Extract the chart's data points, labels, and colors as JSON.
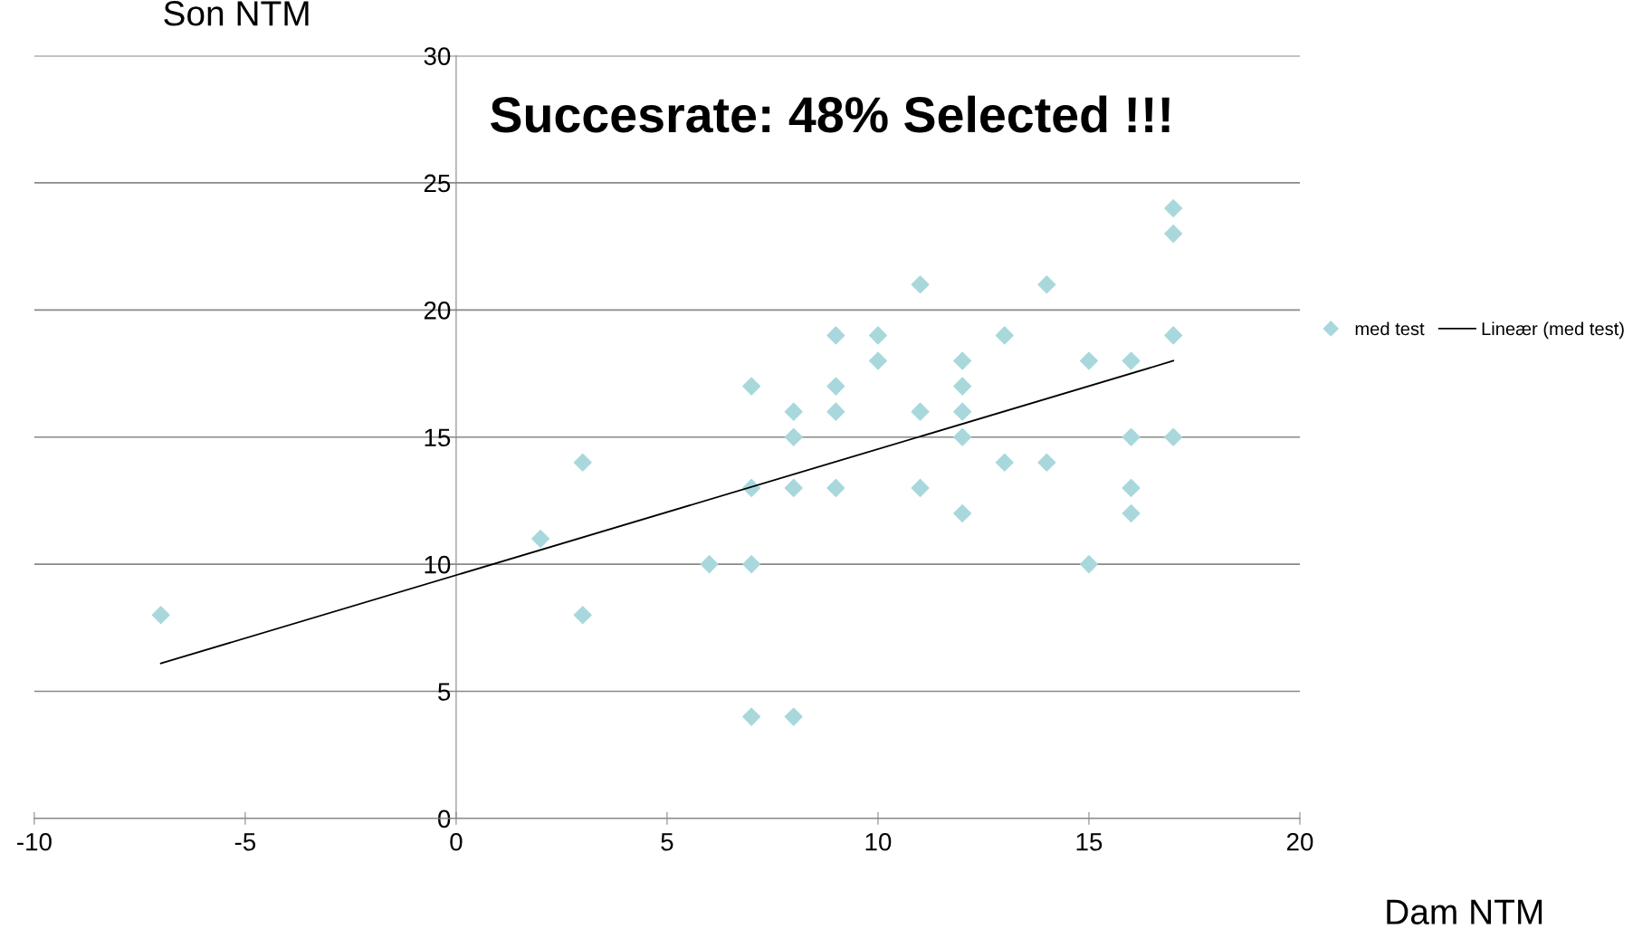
{
  "chart_data": {
    "type": "scatter",
    "title": "Succesrate: 48% Selected !!!",
    "xlabel": "Dam NTM",
    "ylabel": "Son NTM",
    "xlim": [
      -10,
      20
    ],
    "xticks": [
      -10,
      -5,
      0,
      5,
      10,
      15,
      20
    ],
    "ylim": [
      0,
      30
    ],
    "yticks": [
      0,
      5,
      10,
      15,
      20,
      25,
      30
    ],
    "grid": "y",
    "legend": "right",
    "series": [
      {
        "name": "med test",
        "marker": "diamond",
        "color": "#a8d8dc",
        "x": [
          -7,
          2,
          3,
          3,
          6,
          7,
          7,
          7,
          7,
          8,
          8,
          8,
          8,
          9,
          9,
          9,
          9,
          10,
          10,
          11,
          11,
          11,
          12,
          12,
          12,
          12,
          12,
          13,
          13,
          14,
          14,
          15,
          15,
          16,
          16,
          16,
          16,
          17,
          17,
          17,
          17
        ],
        "values": [
          8,
          11,
          14,
          8,
          10,
          17,
          13,
          10,
          4,
          16,
          15,
          13,
          4,
          19,
          17,
          16,
          13,
          19,
          18,
          21,
          16,
          13,
          18,
          17,
          16,
          15,
          12,
          19,
          14,
          21,
          14,
          18,
          10,
          18,
          15,
          13,
          12,
          24,
          23,
          19,
          15
        ]
      },
      {
        "name": "Lineær (med test)",
        "type": "line",
        "color": "#000000",
        "x": [
          -7,
          17
        ],
        "values": [
          6.1,
          18
        ]
      }
    ]
  }
}
